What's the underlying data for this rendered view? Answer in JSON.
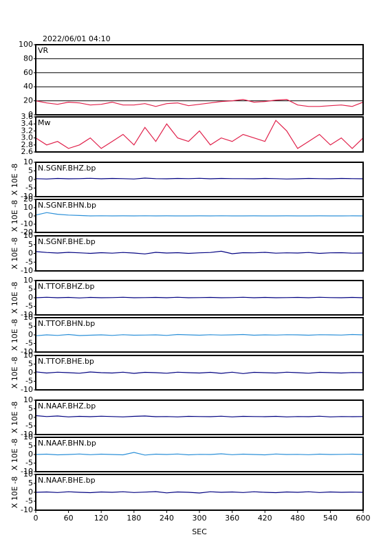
{
  "chart_data": [
    {
      "type": "line",
      "title": "2022/06/01 04:10",
      "annotation": "VR",
      "color": "#e0204a",
      "grid": true,
      "x": [
        0,
        20,
        40,
        60,
        80,
        100,
        120,
        140,
        160,
        180,
        200,
        220,
        240,
        260,
        280,
        300,
        320,
        340,
        360,
        380,
        400,
        420,
        440,
        460,
        480,
        500,
        520,
        540,
        560,
        580,
        600
      ],
      "values": [
        20,
        17,
        15,
        18,
        17,
        14,
        15,
        18,
        14,
        14,
        16,
        12,
        16,
        17,
        13,
        15,
        17,
        19,
        20,
        22,
        18,
        19,
        21,
        22,
        14,
        12,
        12,
        13,
        14,
        12,
        18
      ],
      "xlim": [
        0,
        600
      ],
      "ylim": [
        0,
        100
      ],
      "yticks": [
        0,
        20,
        40,
        60,
        80,
        100
      ]
    },
    {
      "type": "line",
      "annotation": "Mw",
      "color": "#e0204a",
      "grid": false,
      "x": [
        0,
        20,
        40,
        60,
        80,
        100,
        120,
        140,
        160,
        180,
        200,
        220,
        240,
        260,
        280,
        300,
        320,
        340,
        360,
        380,
        400,
        420,
        440,
        460,
        480,
        500,
        520,
        540,
        560,
        580,
        600
      ],
      "values": [
        3.0,
        2.8,
        2.9,
        2.7,
        2.8,
        3.0,
        2.7,
        2.9,
        3.1,
        2.8,
        3.3,
        2.9,
        3.4,
        3.0,
        2.9,
        3.2,
        2.8,
        3.0,
        2.9,
        3.1,
        3.0,
        2.9,
        3.5,
        3.2,
        2.7,
        2.9,
        3.1,
        2.8,
        3.0,
        2.7,
        3.0
      ],
      "xlim": [
        0,
        600
      ],
      "ylim": [
        2.6,
        3.6
      ],
      "yticks": [
        2.6,
        2.8,
        {
          "value": 3,
          "label": "3.0"
        },
        3.2,
        3.4,
        3.6
      ]
    },
    {
      "type": "line",
      "annotation": "N.SGNF.BHZ.bp",
      "ylabel": "X 10E -8",
      "color": "#000080",
      "grid": false,
      "x": [
        0,
        20,
        40,
        60,
        80,
        100,
        120,
        140,
        160,
        180,
        200,
        220,
        240,
        260,
        280,
        300,
        320,
        340,
        360,
        380,
        400,
        420,
        440,
        460,
        480,
        500,
        520,
        540,
        560,
        580,
        600
      ],
      "values": [
        0.5,
        0.3,
        0.6,
        0.4,
        0.5,
        0.7,
        0.4,
        0.6,
        0.5,
        0.3,
        0.8,
        0.5,
        0.4,
        0.6,
        0.5,
        0.7,
        0.4,
        0.6,
        0.5,
        0.5,
        0.4,
        0.6,
        0.5,
        0.3,
        0.4,
        0.6,
        0.5,
        0.4,
        0.6,
        0.5,
        0.4
      ],
      "xlim": [
        0,
        600
      ],
      "ylim": [
        -10,
        10
      ],
      "yticks": [
        -10,
        -5,
        0,
        5,
        10
      ]
    },
    {
      "type": "line",
      "annotation": "N.SGNF.BHN.bp",
      "ylabel": "X 10E -8",
      "color": "#2a8fd8",
      "grid": false,
      "x": [
        0,
        20,
        40,
        60,
        80,
        100,
        120,
        140,
        160,
        180,
        200,
        220,
        240,
        260,
        280,
        300,
        320,
        340,
        360,
        380,
        400,
        420,
        440,
        460,
        480,
        500,
        520,
        540,
        560,
        580,
        600
      ],
      "values": [
        1,
        4,
        2,
        1,
        0.5,
        0,
        0.2,
        0,
        0.1,
        0,
        0.2,
        0,
        0.1,
        0,
        0,
        0.1,
        0,
        0.2,
        0,
        0,
        0.1,
        0,
        0,
        0.1,
        0,
        0,
        0.1,
        0,
        0,
        0.1,
        0
      ],
      "xlim": [
        0,
        600
      ],
      "ylim": [
        -20,
        20
      ],
      "yticks": [
        -20,
        -10,
        0,
        10,
        20
      ]
    },
    {
      "type": "line",
      "annotation": "N.SGNF.BHE.bp",
      "ylabel": "X 10E -8",
      "color": "#000080",
      "grid": false,
      "x": [
        0,
        20,
        40,
        60,
        80,
        100,
        120,
        140,
        160,
        180,
        200,
        220,
        240,
        260,
        280,
        300,
        320,
        340,
        360,
        380,
        400,
        420,
        440,
        460,
        480,
        500,
        520,
        540,
        560,
        580,
        600
      ],
      "values": [
        1,
        0.5,
        0.2,
        0.6,
        0.3,
        0,
        0.4,
        0.1,
        0.5,
        0.2,
        -0.3,
        0.6,
        0.2,
        0.4,
        0,
        0.3,
        0.5,
        1.2,
        -0.2,
        0.4,
        0.3,
        0.6,
        0.1,
        0.3,
        0.2,
        0.5,
        0,
        0.3,
        0.4,
        0.1,
        0.2
      ],
      "xlim": [
        0,
        600
      ],
      "ylim": [
        -10,
        10
      ],
      "yticks": [
        -10,
        -5,
        0,
        5,
        10
      ]
    },
    {
      "type": "line",
      "annotation": "N.TTOF.BHZ.bp",
      "ylabel": "X 10E -8",
      "color": "#000080",
      "grid": false,
      "x": [
        0,
        20,
        40,
        60,
        80,
        100,
        120,
        140,
        160,
        180,
        200,
        220,
        240,
        260,
        280,
        300,
        320,
        340,
        360,
        380,
        400,
        420,
        440,
        460,
        480,
        500,
        520,
        540,
        560,
        580,
        600
      ],
      "values": [
        0,
        0.3,
        0,
        0.2,
        -0.1,
        0.2,
        0,
        0.1,
        0.3,
        0,
        0.1,
        0.2,
        0,
        0.3,
        0,
        0.1,
        0.2,
        0,
        0.1,
        0.3,
        0,
        0.2,
        0,
        0.1,
        0.2,
        0,
        0.3,
        0.1,
        0,
        0.2,
        0
      ],
      "xlim": [
        0,
        600
      ],
      "ylim": [
        -10,
        10
      ],
      "yticks": [
        -10,
        -5,
        0,
        5,
        10
      ]
    },
    {
      "type": "line",
      "annotation": "N.TTOF.BHN.bp",
      "ylabel": "X 10E -8",
      "color": "#2a8fd8",
      "grid": false,
      "x": [
        0,
        20,
        40,
        60,
        80,
        100,
        120,
        140,
        160,
        180,
        200,
        220,
        240,
        260,
        280,
        300,
        320,
        340,
        360,
        380,
        400,
        420,
        440,
        460,
        480,
        500,
        520,
        540,
        560,
        580,
        600
      ],
      "values": [
        -0.5,
        0,
        -0.3,
        0.2,
        -0.4,
        -0.2,
        0,
        -0.3,
        0.1,
        -0.2,
        -0.1,
        0,
        -0.3,
        0.2,
        0,
        -0.2,
        0.1,
        -0.1,
        0,
        0.2,
        -0.2,
        0,
        -0.1,
        0.1,
        0,
        -0.2,
        0.1,
        0,
        -0.1,
        0.2,
        0
      ],
      "xlim": [
        0,
        600
      ],
      "ylim": [
        -10,
        10
      ],
      "yticks": [
        -10,
        -5,
        0,
        5,
        10
      ]
    },
    {
      "type": "line",
      "annotation": "N.TTOF.BHE.bp",
      "ylabel": "X 10E -8",
      "color": "#000080",
      "grid": false,
      "x": [
        0,
        20,
        40,
        60,
        80,
        100,
        120,
        140,
        160,
        180,
        200,
        220,
        240,
        260,
        280,
        300,
        320,
        340,
        360,
        380,
        400,
        420,
        440,
        460,
        480,
        500,
        520,
        540,
        560,
        580,
        600
      ],
      "values": [
        0.5,
        -0.2,
        0.3,
        0,
        -0.3,
        0.4,
        0,
        -0.2,
        0.3,
        -0.4,
        0.2,
        0,
        -0.3,
        0.3,
        0,
        -0.2,
        0.2,
        -0.4,
        0.3,
        -0.5,
        0.2,
        0,
        -0.2,
        0.3,
        0,
        -0.3,
        0.2,
        0,
        -0.2,
        0.1,
        0
      ],
      "xlim": [
        0,
        600
      ],
      "ylim": [
        -10,
        10
      ],
      "yticks": [
        -10,
        -5,
        0,
        5,
        10
      ]
    },
    {
      "type": "line",
      "annotation": "N.NAAF.BHZ.bp",
      "ylabel": "X 10E -8",
      "color": "#000080",
      "grid": false,
      "x": [
        0,
        20,
        40,
        60,
        80,
        100,
        120,
        140,
        160,
        180,
        200,
        220,
        240,
        260,
        280,
        300,
        320,
        340,
        360,
        380,
        400,
        420,
        440,
        460,
        480,
        500,
        520,
        540,
        560,
        580,
        600
      ],
      "values": [
        1,
        0.5,
        0.8,
        0.3,
        0.6,
        0.4,
        0.7,
        0.5,
        0.3,
        0.6,
        0.8,
        0.4,
        0.5,
        0.3,
        0.6,
        0.5,
        0.4,
        0.7,
        0.3,
        0.6,
        0.5,
        0.4,
        0.6,
        0.3,
        0.5,
        0.4,
        0.7,
        0.3,
        0.5,
        0.4,
        0.5
      ],
      "xlim": [
        0,
        600
      ],
      "ylim": [
        -10,
        10
      ],
      "yticks": [
        -10,
        -5,
        0,
        5,
        10
      ]
    },
    {
      "type": "line",
      "annotation": "N.NAAF.BHN.bp",
      "ylabel": "X 10E -8",
      "color": "#2a8fd8",
      "grid": false,
      "x": [
        0,
        20,
        40,
        60,
        80,
        100,
        120,
        140,
        160,
        180,
        200,
        220,
        240,
        260,
        280,
        300,
        320,
        340,
        360,
        380,
        400,
        420,
        440,
        460,
        480,
        500,
        520,
        540,
        560,
        580,
        600
      ],
      "values": [
        0,
        0.2,
        -0.2,
        0,
        0.3,
        -0.1,
        0.2,
        0,
        -0.2,
        1.2,
        -0.3,
        0.2,
        0,
        0.3,
        -0.2,
        0.1,
        0,
        0.4,
        -0.1,
        0.2,
        0,
        -0.2,
        0.3,
        0,
        0.1,
        -0.1,
        0.2,
        0,
        0.1,
        0.2,
        0
      ],
      "xlim": [
        0,
        600
      ],
      "ylim": [
        -10,
        10
      ],
      "yticks": [
        -10,
        -5,
        0,
        5,
        10
      ]
    },
    {
      "type": "line",
      "annotation": "N.NAAF.BHE.bp",
      "ylabel": "X 10E -8",
      "color": "#000080",
      "grid": false,
      "x": [
        0,
        20,
        40,
        60,
        80,
        100,
        120,
        140,
        160,
        180,
        200,
        220,
        240,
        260,
        280,
        300,
        320,
        340,
        360,
        380,
        400,
        420,
        440,
        460,
        480,
        500,
        520,
        540,
        560,
        580,
        600
      ],
      "values": [
        0,
        0.2,
        -0.1,
        0.3,
        0,
        -0.2,
        0.2,
        0,
        0.3,
        -0.1,
        0.1,
        0.4,
        -0.3,
        0.2,
        0,
        -0.4,
        0.3,
        0,
        0.2,
        -0.1,
        0.3,
        0,
        -0.2,
        0.2,
        0,
        0.3,
        -0.1,
        0.2,
        0,
        0.1,
        0
      ],
      "xlim": [
        0,
        600
      ],
      "ylim": [
        -10,
        10
      ],
      "yticks": [
        -10,
        -5,
        0,
        5,
        10
      ],
      "xticks": [
        0,
        60,
        120,
        180,
        240,
        300,
        360,
        420,
        480,
        540,
        600
      ],
      "xlabel": "SEC"
    }
  ]
}
